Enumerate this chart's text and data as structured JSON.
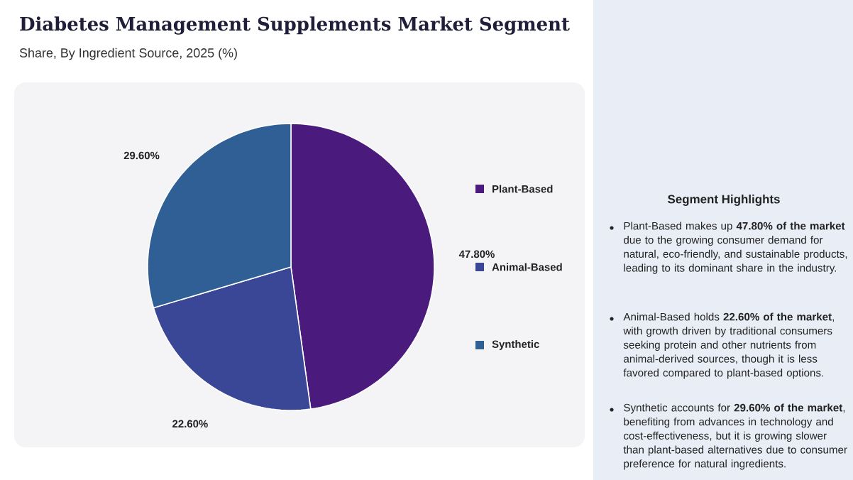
{
  "chart_data": [
    {
      "type": "pie",
      "title": "Diabetes Management Supplements Market Segment",
      "subtitle": "Share, By Ingredient Source, 2025 (%)",
      "categories": [
        "Plant-Based",
        "Animal-Based",
        "Synthetic"
      ],
      "values": [
        47.8,
        22.6,
        29.6
      ],
      "colors": [
        "#4a1a7c",
        "#3a4796",
        "#2f5f95"
      ],
      "value_labels": [
        "47.80%",
        "22.60%",
        "29.60%"
      ],
      "legend": "right"
    },
    {
      "type": "other",
      "title": "Segment Highlights",
      "annotations": [
        "Plant-Based makes up **47.80% of the market** due to the growing consumer demand for natural, eco-friendly, and sustainable products, leading to its dominant share in the industry.",
        "Animal-Based holds **22.60% of the market**, with growth driven by traditional consumers seeking protein and other nutrients from animal-derived sources, though it is less favored compared to plant-based options.",
        "Synthetic accounts for **29.60% of the market**, benefiting from advances in technology and cost-effectiveness, but it is growing slower than plant-based alternatives due to consumer preference for natural ingredients."
      ]
    }
  ]
}
